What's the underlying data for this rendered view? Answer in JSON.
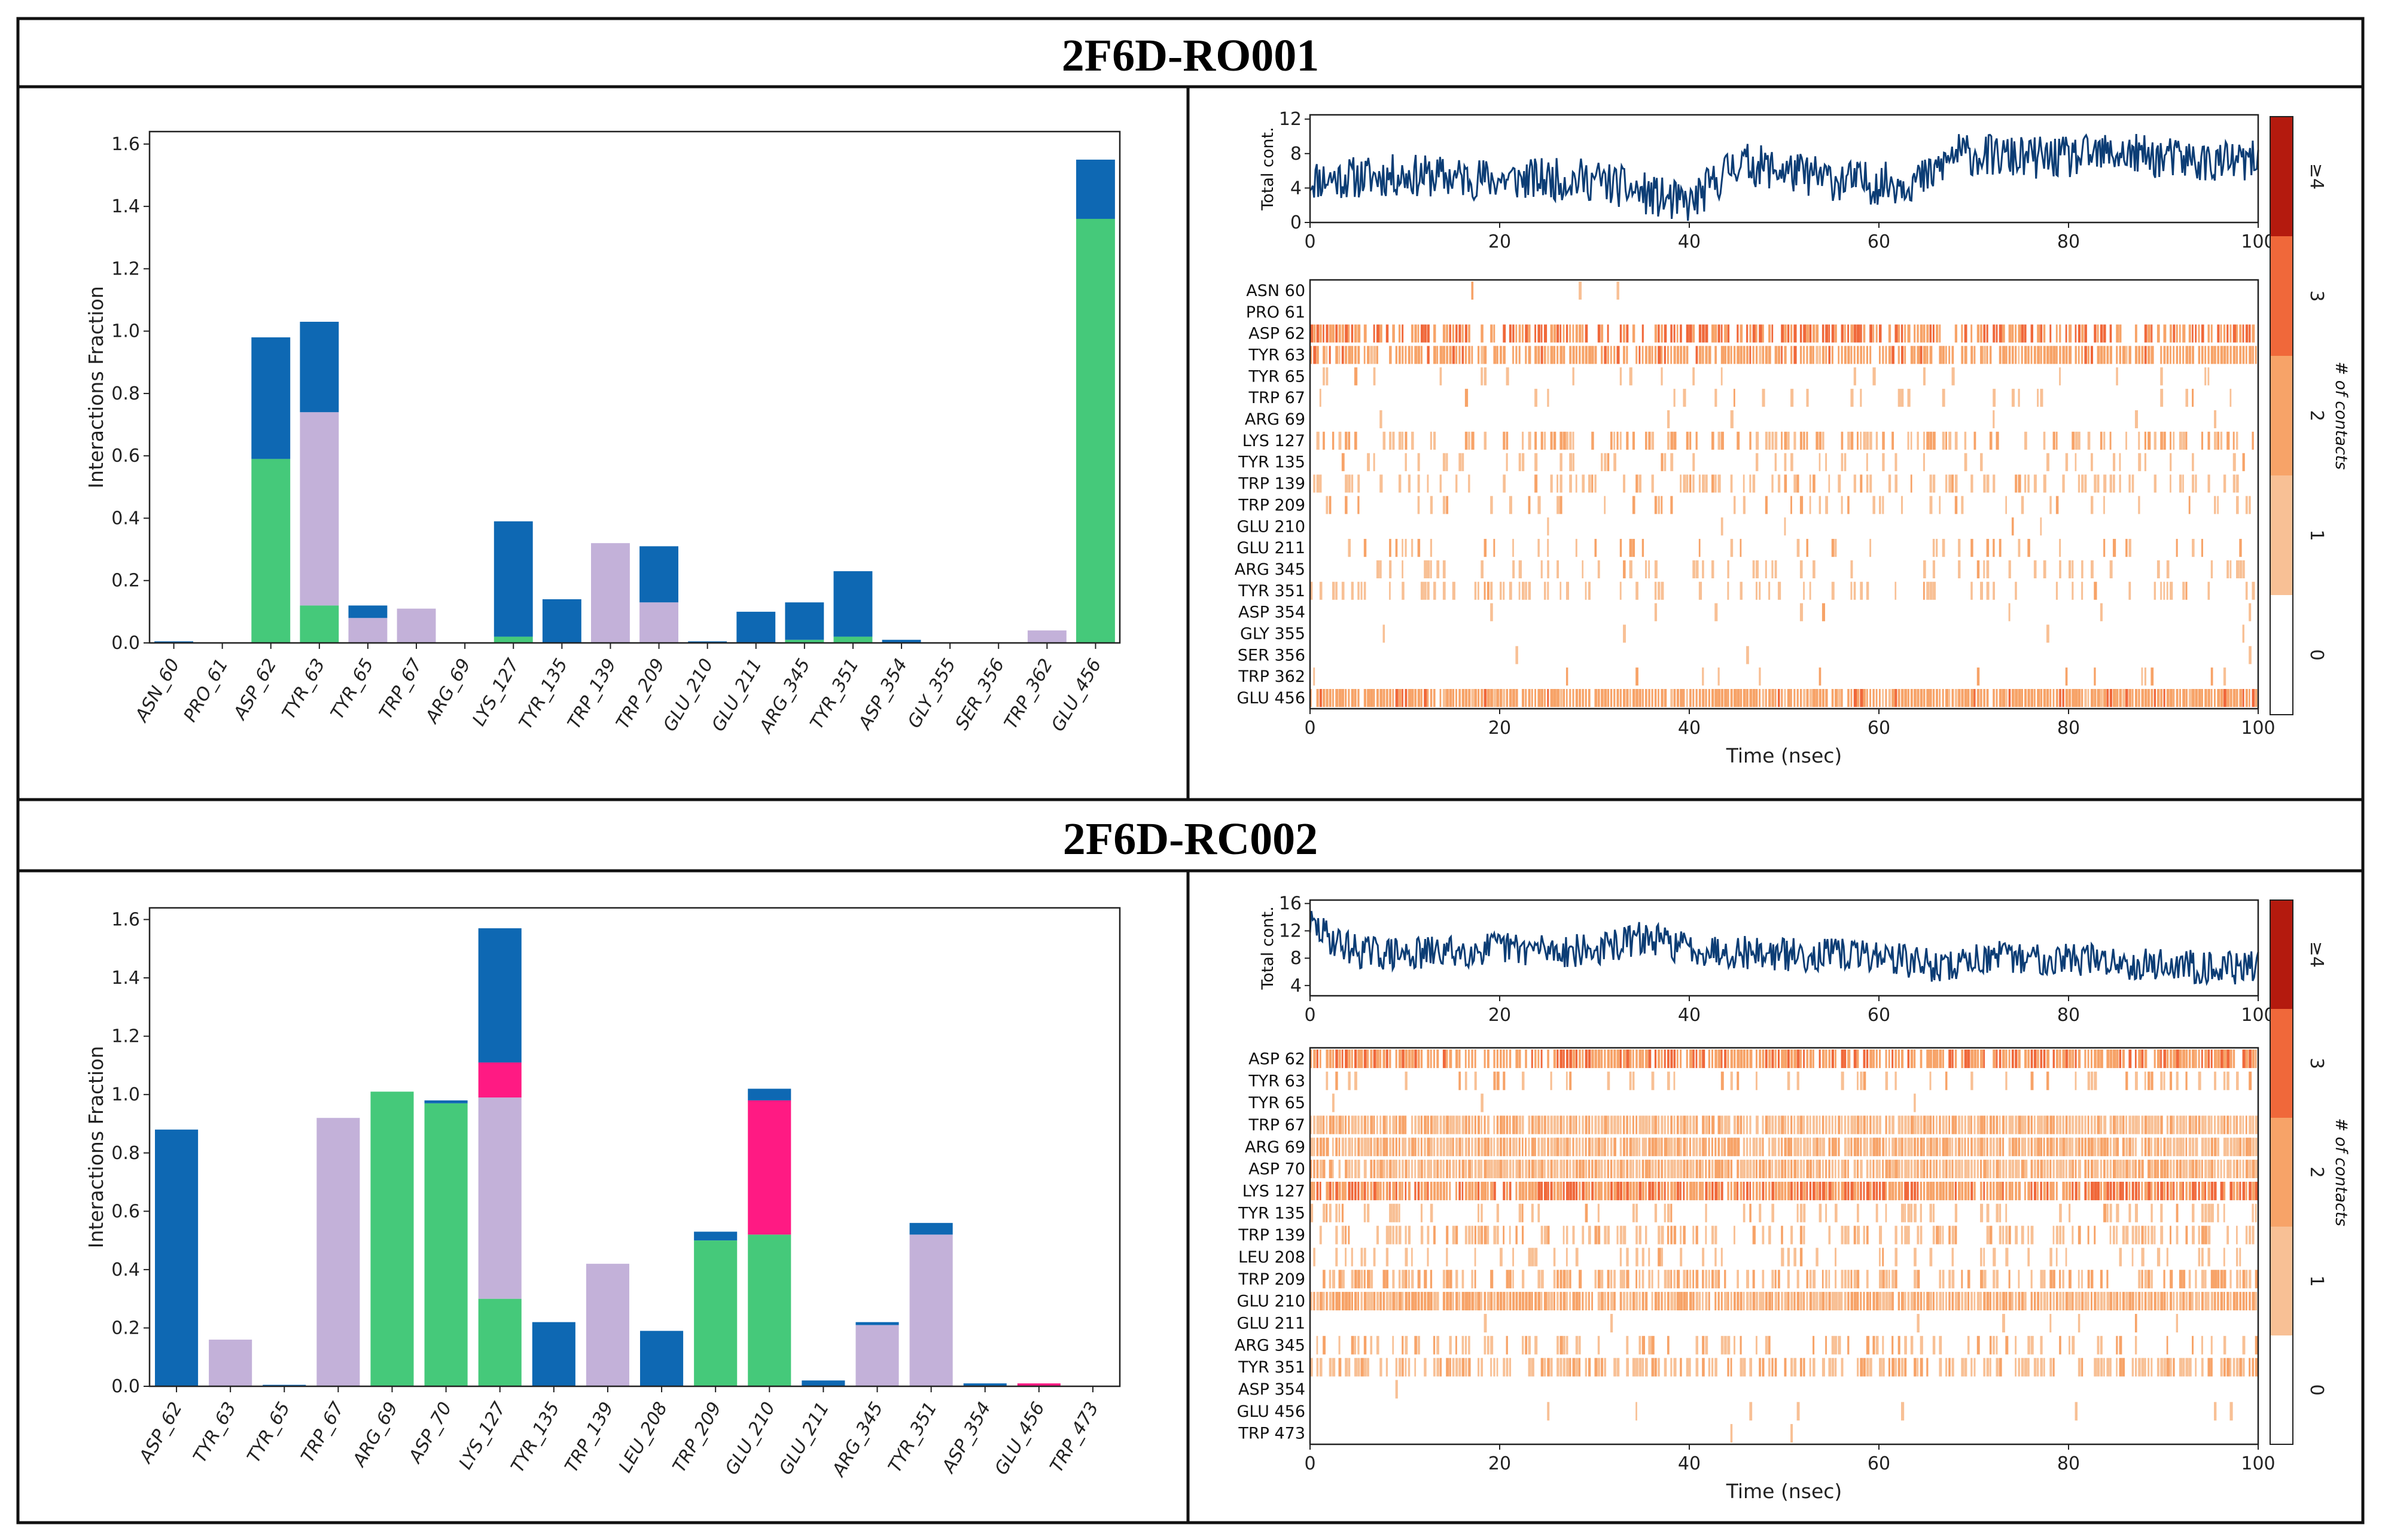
{
  "colors": {
    "hbond": "#45c97a",
    "hydrophobic": "#c3b1d9",
    "ionic": "#ff1a83",
    "water_bridge": "#0e68b3",
    "timeline_line": "#0c3d75",
    "contact_1": "#f8c095",
    "contact_2": "#f7a368",
    "contact_3": "#f0683a",
    "contact_4": "#b41a0e"
  },
  "panels": [
    {
      "title": "2F6D-RO001",
      "chart_data": [
        {
          "type": "bar",
          "stacked": true,
          "ylabel": "Interactions Fraction",
          "ylim": [
            0,
            1.64
          ],
          "yticks": [
            0.0,
            0.2,
            0.4,
            0.6,
            0.8,
            1.0,
            1.2,
            1.4,
            1.6
          ],
          "ytick_labels": [
            "0.0",
            "0.2",
            "0.4",
            "0.6",
            "0.8",
            "1.0",
            "1.2",
            "1.4",
            "1.6"
          ],
          "categories": [
            "ASN_60",
            "PRO_61",
            "ASP_62",
            "TYR_63",
            "TYR_65",
            "TRP_67",
            "ARG_69",
            "LYS_127",
            "TYR_135",
            "TRP_139",
            "TRP_209",
            "GLU_210",
            "GLU_211",
            "ARG_345",
            "TYR_351",
            "ASP_354",
            "GLY_355",
            "SER_356",
            "TRP_362",
            "GLU_456"
          ],
          "series": [
            {
              "color_key": "hbond",
              "values": [
                0,
                0,
                0.59,
                0.12,
                0,
                0,
                0,
                0.02,
                0,
                0,
                0,
                0,
                0,
                0.01,
                0.02,
                0,
                0,
                0,
                0,
                1.36
              ]
            },
            {
              "color_key": "hydrophobic",
              "values": [
                0,
                0,
                0,
                0.62,
                0.08,
                0.11,
                0,
                0,
                0,
                0.32,
                0.13,
                0,
                0,
                0,
                0,
                0,
                0,
                0,
                0.04,
                0
              ]
            },
            {
              "color_key": "ionic",
              "values": [
                0,
                0,
                0,
                0,
                0,
                0,
                0,
                0,
                0,
                0,
                0,
                0,
                0,
                0,
                0,
                0,
                0,
                0,
                0,
                0
              ]
            },
            {
              "color_key": "water_bridge",
              "values": [
                0.005,
                0,
                0.39,
                0.29,
                0.04,
                0,
                0,
                0.37,
                0.14,
                0,
                0.18,
                0.005,
                0.1,
                0.12,
                0.21,
                0.01,
                0,
                0,
                0,
                0.19
              ]
            }
          ]
        },
        {
          "type": "line",
          "ylabel": "Total cont.",
          "xlim": [
            0,
            100
          ],
          "xticks": [
            0,
            20,
            40,
            60,
            80,
            100
          ],
          "ylim": [
            0,
            12.5
          ],
          "yticks": [
            0,
            4,
            8,
            12
          ],
          "baseline": {
            "x": [
              0,
              10,
              20,
              30,
              38,
              40,
              45,
              50,
              55,
              60,
              65,
              68,
              75,
              80,
              85,
              90,
              95,
              100
            ],
            "y": [
              5,
              5.5,
              5,
              5,
              2.5,
              2,
              7,
              6,
              5,
              4.5,
              5,
              8,
              7.5,
              7.5,
              8,
              7.5,
              7,
              7
            ]
          }
        },
        {
          "type": "heatmap",
          "xlabel": "Time (nsec)",
          "xlim": [
            0,
            100
          ],
          "xticks": [
            0,
            20,
            40,
            60,
            80,
            100
          ],
          "colorbar_label": "# of contacts",
          "colorbar_ticks": [
            "0",
            "1",
            "2",
            "3",
            "≥4"
          ],
          "rows": [
            "ASN_60",
            "PRO_61",
            "ASP_62",
            "TYR_63",
            "TYR_65",
            "TRP_67",
            "ARG_69",
            "LYS_127",
            "TYR_135",
            "TRP_139",
            "TRP_209",
            "GLU_210",
            "GLU_211",
            "ARG_345",
            "TYR_351",
            "ASP_354",
            "GLY_355",
            "SER_356",
            "TRP_362",
            "GLU_456"
          ],
          "occupancy": [
            0.01,
            0,
            0.7,
            0.85,
            0.05,
            0.08,
            0.02,
            0.45,
            0.15,
            0.35,
            0.2,
            0.02,
            0.12,
            0.15,
            0.25,
            0.02,
            0.01,
            0.01,
            0.05,
            0.97
          ],
          "intensity": [
            1,
            1,
            2.5,
            2,
            1,
            1,
            1,
            1.5,
            1,
            1,
            1.3,
            1,
            1.3,
            1,
            1,
            1,
            1,
            1,
            1.3,
            2
          ]
        }
      ]
    },
    {
      "title": "2F6D-RC002",
      "chart_data": [
        {
          "type": "bar",
          "stacked": true,
          "ylabel": "Interactions Fraction",
          "ylim": [
            0,
            1.64
          ],
          "yticks": [
            0.0,
            0.2,
            0.4,
            0.6,
            0.8,
            1.0,
            1.2,
            1.4,
            1.6
          ],
          "ytick_labels": [
            "0.0",
            "0.2",
            "0.4",
            "0.6",
            "0.8",
            "1.0",
            "1.2",
            "1.4",
            "1.6"
          ],
          "categories": [
            "ASP_62",
            "TYR_63",
            "TYR_65",
            "TRP_67",
            "ARG_69",
            "ASP_70",
            "LYS_127",
            "TYR_135",
            "TRP_139",
            "LEU_208",
            "TRP_209",
            "GLU_210",
            "GLU_211",
            "ARG_345",
            "TYR_351",
            "ASP_354",
            "GLU_456",
            "TRP_473"
          ],
          "series": [
            {
              "color_key": "hbond",
              "values": [
                0,
                0,
                0,
                0,
                1.01,
                0.97,
                0.3,
                0,
                0,
                0,
                0.5,
                0.52,
                0,
                0,
                0,
                0,
                0,
                0
              ]
            },
            {
              "color_key": "hydrophobic",
              "values": [
                0,
                0.16,
                0,
                0.92,
                0,
                0,
                0.69,
                0,
                0.42,
                0,
                0,
                0,
                0,
                0.21,
                0.52,
                0,
                0,
                0
              ]
            },
            {
              "color_key": "ionic",
              "values": [
                0,
                0,
                0,
                0,
                0,
                0,
                0.12,
                0,
                0,
                0,
                0,
                0.46,
                0,
                0,
                0,
                0,
                0.01,
                0
              ]
            },
            {
              "color_key": "water_bridge",
              "values": [
                0.88,
                0,
                0.005,
                0,
                0,
                0.01,
                0.46,
                0.22,
                0,
                0.19,
                0.03,
                0.04,
                0.02,
                0.01,
                0.04,
                0.01,
                0,
                0
              ]
            }
          ]
        },
        {
          "type": "line",
          "ylabel": "Total cont.",
          "xlim": [
            0,
            100
          ],
          "xticks": [
            0,
            20,
            40,
            60,
            80,
            100
          ],
          "ylim": [
            2.5,
            16.5
          ],
          "yticks": [
            4,
            8,
            12,
            16
          ],
          "baseline": {
            "x": [
              0,
              2,
              5,
              10,
              20,
              30,
              35,
              40,
              50,
              60,
              67,
              70,
              80,
              90,
              100
            ],
            "y": [
              13,
              11,
              9,
              8.5,
              9.5,
              9,
              11,
              9.5,
              8.5,
              8.5,
              6.5,
              8,
              8,
              7,
              6.5
            ]
          }
        },
        {
          "type": "heatmap",
          "xlabel": "Time (nsec)",
          "xlim": [
            0,
            100
          ],
          "xticks": [
            0,
            20,
            40,
            60,
            80,
            100
          ],
          "colorbar_label": "# of contacts",
          "colorbar_ticks": [
            "0",
            "1",
            "2",
            "3",
            "≥4"
          ],
          "rows": [
            "ASP_62",
            "TYR_63",
            "TYR_65",
            "TRP_67",
            "ARG_69",
            "ASP_70",
            "LYS_127",
            "TYR_135",
            "TRP_139",
            "LEU_208",
            "TRP_209",
            "GLU_210",
            "GLU_211",
            "ARG_345",
            "TYR_351",
            "ASP_354",
            "GLU_456",
            "TRP_473"
          ],
          "occupancy": [
            0.85,
            0.2,
            0.02,
            0.95,
            0.97,
            0.97,
            0.97,
            0.25,
            0.45,
            0.2,
            0.55,
            0.97,
            0.03,
            0.3,
            0.6,
            0.01,
            0.02,
            0.005
          ],
          "intensity": [
            2.3,
            1.3,
            1,
            1.3,
            1.5,
            1.4,
            2.5,
            1,
            1.3,
            1,
            1.4,
            1.6,
            1,
            1.3,
            1.3,
            1,
            1,
            1
          ]
        }
      ]
    }
  ]
}
